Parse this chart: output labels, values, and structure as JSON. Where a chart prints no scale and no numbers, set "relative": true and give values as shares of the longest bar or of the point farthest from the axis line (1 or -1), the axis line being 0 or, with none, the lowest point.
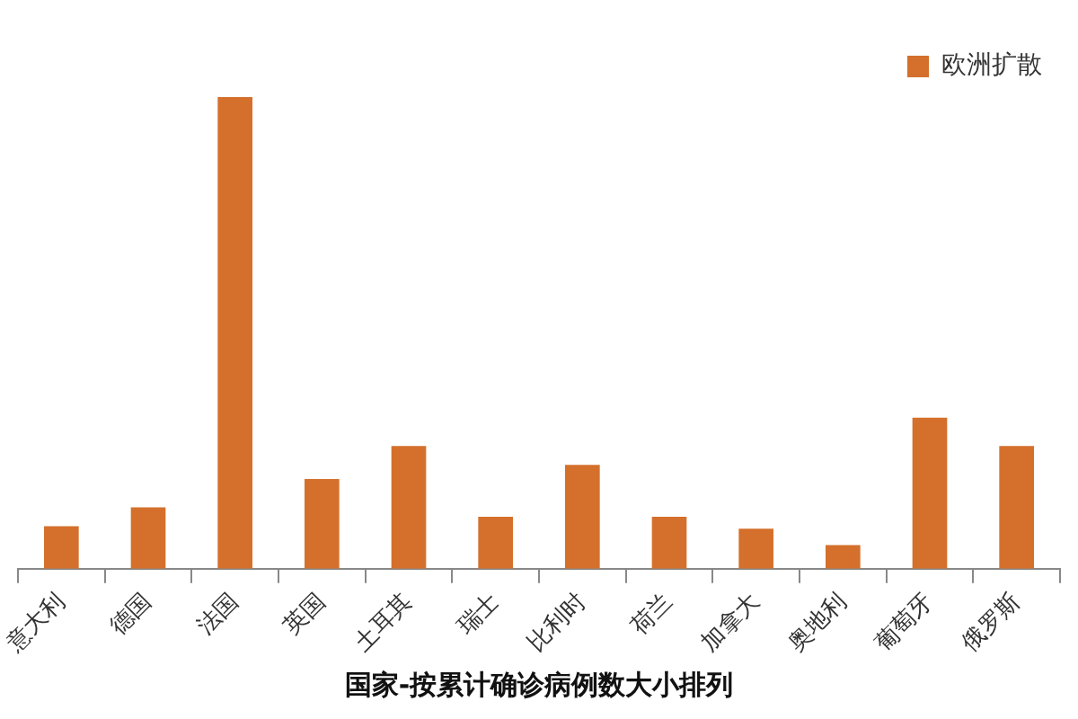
{
  "chart_data": {
    "type": "bar",
    "xlabel": "国家-按累计确诊病例数大小排列",
    "categories": [
      "意大利",
      "德国",
      "法国",
      "英国",
      "土耳其",
      "瑞士",
      "比利时",
      "荷兰",
      "加拿大",
      "奥地利",
      "葡萄牙",
      "俄罗斯"
    ],
    "series": [
      {
        "name": "欧洲扩散",
        "color": "#d4702c",
        "values": [
          0.09,
          0.13,
          1,
          0.19,
          0.26,
          0.11,
          0.22,
          0.11,
          0.085,
          0.05,
          0.32,
          0.26
        ]
      }
    ],
    "relative": true,
    "legend": "top right",
    "grid": false
  }
}
